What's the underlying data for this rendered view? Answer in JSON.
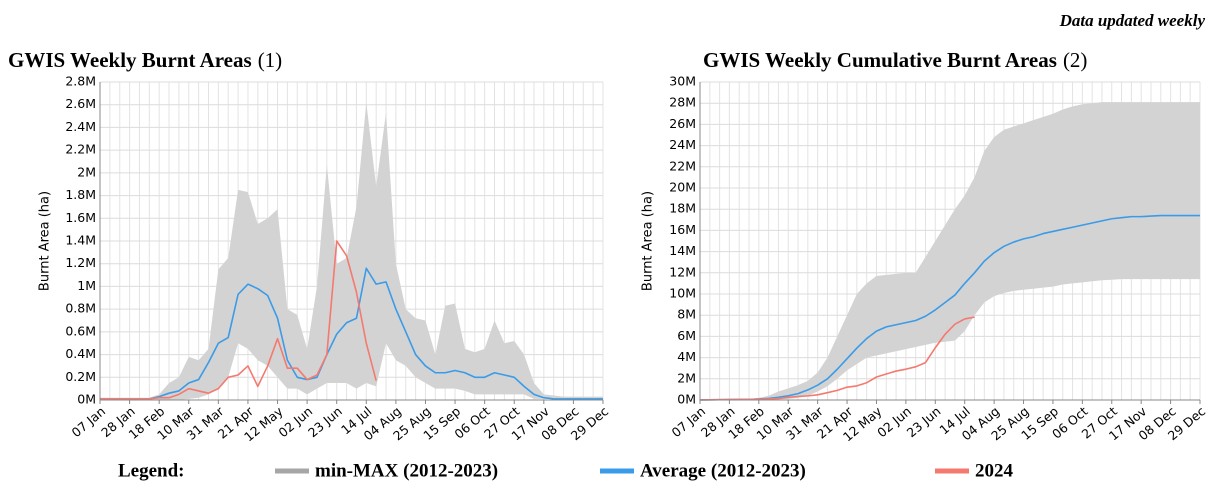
{
  "note": "Data updated weekly",
  "legend_title": "Legend:",
  "chart_data": [
    {
      "type": "line",
      "title": "GWIS Weekly Burnt Areas",
      "title_ref": "(1)",
      "y_label": "Burnt Area (ha)",
      "grid": true,
      "categories": [
        "07 Jan",
        null,
        null,
        "28 Jan",
        null,
        null,
        "18 Feb",
        null,
        null,
        "10 Mar",
        null,
        null,
        "31 Mar",
        null,
        null,
        "21 Apr",
        null,
        null,
        "12 May",
        null,
        null,
        "02 Jun",
        null,
        null,
        "23 Jun",
        null,
        null,
        "14 Jul",
        null,
        null,
        "04 Aug",
        null,
        null,
        "25 Aug",
        null,
        null,
        "15 Sep",
        null,
        null,
        "06 Oct",
        null,
        null,
        "27 Oct",
        null,
        null,
        "17 Nov",
        null,
        null,
        "08 Dec",
        null,
        null,
        "29 Dec"
      ],
      "ylim": [
        0,
        2800000
      ],
      "yticks": [
        {
          "value": 0,
          "label": "0M"
        },
        {
          "value": 200000,
          "label": "0.2M"
        },
        {
          "value": 400000,
          "label": "0.4M"
        },
        {
          "value": 600000,
          "label": "0.6M"
        },
        {
          "value": 800000,
          "label": "0.8M"
        },
        {
          "value": 1000000,
          "label": "1M"
        },
        {
          "value": 1200000,
          "label": "1.2M"
        },
        {
          "value": 1400000,
          "label": "1.4M"
        },
        {
          "value": 1600000,
          "label": "1.6M"
        },
        {
          "value": 1800000,
          "label": "1.8M"
        },
        {
          "value": 2000000,
          "label": "2M"
        },
        {
          "value": 2200000,
          "label": "2.2M"
        },
        {
          "value": 2400000,
          "label": "2.4M"
        },
        {
          "value": 2600000,
          "label": "2.6M"
        },
        {
          "value": 2800000,
          "label": "2.8M"
        }
      ],
      "series": [
        {
          "name": "min-MAX (2012-2023)",
          "color": "#a6a6a6",
          "fill": "#d3d3d3",
          "min": [
            0,
            0,
            0,
            0,
            0,
            0,
            0,
            0,
            0,
            10000,
            20000,
            50000,
            100000,
            200000,
            500000,
            450000,
            350000,
            300000,
            200000,
            100000,
            100000,
            50000,
            100000,
            150000,
            150000,
            150000,
            100000,
            150000,
            120000,
            500000,
            350000,
            300000,
            200000,
            150000,
            100000,
            100000,
            100000,
            80000,
            50000,
            50000,
            50000,
            50000,
            50000,
            50000,
            10000,
            10000,
            10000,
            10000,
            10000,
            10000,
            10000,
            10000
          ],
          "max": [
            20000,
            20000,
            20000,
            20000,
            20000,
            20000,
            50000,
            150000,
            200000,
            380000,
            350000,
            450000,
            1150000,
            1250000,
            1850000,
            1830000,
            1550000,
            1600000,
            1680000,
            800000,
            750000,
            450000,
            1000000,
            2070000,
            1200000,
            1250000,
            1700000,
            2620000,
            1880000,
            2530000,
            1200000,
            800000,
            720000,
            700000,
            400000,
            830000,
            850000,
            450000,
            420000,
            450000,
            700000,
            500000,
            520000,
            400000,
            150000,
            50000,
            40000,
            30000,
            30000,
            30000,
            30000,
            30000
          ]
        },
        {
          "name": "Average (2012-2023)",
          "color": "#3a9be8",
          "values": [
            10000,
            10000,
            10000,
            10000,
            10000,
            10000,
            30000,
            60000,
            80000,
            150000,
            180000,
            330000,
            500000,
            550000,
            930000,
            1020000,
            980000,
            920000,
            720000,
            350000,
            200000,
            180000,
            200000,
            400000,
            580000,
            680000,
            720000,
            1160000,
            1020000,
            1040000,
            800000,
            600000,
            400000,
            300000,
            240000,
            240000,
            260000,
            240000,
            200000,
            200000,
            240000,
            220000,
            200000,
            120000,
            50000,
            20000,
            10000,
            10000,
            10000,
            10000,
            10000,
            10000
          ]
        },
        {
          "name": "2024",
          "color": "#f47a6f",
          "values": [
            10000,
            10000,
            10000,
            10000,
            10000,
            10000,
            20000,
            20000,
            50000,
            100000,
            80000,
            60000,
            100000,
            200000,
            220000,
            300000,
            120000,
            300000,
            540000,
            280000,
            280000,
            180000,
            220000,
            400000,
            1400000,
            1270000,
            950000,
            500000,
            170000,
            null,
            null,
            null,
            null,
            null,
            null,
            null,
            null,
            null,
            null,
            null,
            null,
            null,
            null,
            null,
            null,
            null,
            null,
            null,
            null,
            null,
            null,
            null
          ]
        }
      ]
    },
    {
      "type": "line",
      "title": "GWIS Weekly Cumulative Burnt Areas",
      "title_ref": "(2)",
      "y_label": "Burnt Area (ha)",
      "grid": true,
      "categories": [
        "07 Jan",
        null,
        null,
        "28 Jan",
        null,
        null,
        "18 Feb",
        null,
        null,
        "10 Mar",
        null,
        null,
        "31 Mar",
        null,
        null,
        "21 Apr",
        null,
        null,
        "12 May",
        null,
        null,
        "02 Jun",
        null,
        null,
        "23 Jun",
        null,
        null,
        "14 Jul",
        null,
        null,
        "04 Aug",
        null,
        null,
        "25 Aug",
        null,
        null,
        "15 Sep",
        null,
        null,
        "06 Oct",
        null,
        null,
        "27 Oct",
        null,
        null,
        "17 Nov",
        null,
        null,
        "08 Dec",
        null,
        null,
        "29 Dec"
      ],
      "ylim": [
        0,
        30000000
      ],
      "yticks": [
        {
          "value": 0,
          "label": "0M"
        },
        {
          "value": 2000000,
          "label": "2M"
        },
        {
          "value": 4000000,
          "label": "4M"
        },
        {
          "value": 6000000,
          "label": "6M"
        },
        {
          "value": 8000000,
          "label": "8M"
        },
        {
          "value": 10000000,
          "label": "10M"
        },
        {
          "value": 12000000,
          "label": "12M"
        },
        {
          "value": 14000000,
          "label": "14M"
        },
        {
          "value": 16000000,
          "label": "16M"
        },
        {
          "value": 18000000,
          "label": "18M"
        },
        {
          "value": 20000000,
          "label": "20M"
        },
        {
          "value": 22000000,
          "label": "22M"
        },
        {
          "value": 24000000,
          "label": "24M"
        },
        {
          "value": 26000000,
          "label": "26M"
        },
        {
          "value": 28000000,
          "label": "28M"
        },
        {
          "value": 30000000,
          "label": "30M"
        }
      ],
      "series": [
        {
          "name": "min-MAX (2012-2023)",
          "color": "#a6a6a6",
          "fill": "#d3d3d3",
          "min": [
            0,
            0,
            0,
            0,
            0,
            0,
            10000,
            20000,
            50000,
            100000,
            200000,
            400000,
            800000,
            1300000,
            2000000,
            2800000,
            3400000,
            4000000,
            4200000,
            4400000,
            4600000,
            4800000,
            5000000,
            5200000,
            5400000,
            5500000,
            5600000,
            6500000,
            8000000,
            9200000,
            9800000,
            10100000,
            10300000,
            10400000,
            10500000,
            10600000,
            10700000,
            10900000,
            11000000,
            11100000,
            11200000,
            11300000,
            11350000,
            11400000,
            11400000,
            11400000,
            11400000,
            11400000,
            11400000,
            11400000,
            11400000,
            11400000
          ],
          "max": [
            20000,
            30000,
            40000,
            60000,
            80000,
            100000,
            200000,
            400000,
            800000,
            1100000,
            1400000,
            1800000,
            2600000,
            4000000,
            6000000,
            8000000,
            10000000,
            11000000,
            11700000,
            11800000,
            11900000,
            12000000,
            12000000,
            13500000,
            15000000,
            16500000,
            18000000,
            19300000,
            21000000,
            23500000,
            24800000,
            25500000,
            25800000,
            26100000,
            26400000,
            26700000,
            27000000,
            27400000,
            27700000,
            27900000,
            28000000,
            28100000,
            28100000,
            28100000,
            28100000,
            28100000,
            28100000,
            28100000,
            28100000,
            28100000,
            28100000,
            28100000
          ]
        },
        {
          "name": "Average (2012-2023)",
          "color": "#3a9be8",
          "values": [
            10000,
            20000,
            30000,
            40000,
            50000,
            60000,
            100000,
            150000,
            250000,
            400000,
            600000,
            950000,
            1400000,
            2000000,
            2900000,
            3900000,
            4900000,
            5800000,
            6500000,
            6900000,
            7100000,
            7300000,
            7500000,
            7900000,
            8500000,
            9200000,
            9900000,
            11000000,
            12000000,
            13100000,
            13900000,
            14500000,
            14900000,
            15200000,
            15400000,
            15700000,
            15900000,
            16100000,
            16300000,
            16500000,
            16700000,
            16900000,
            17100000,
            17200000,
            17300000,
            17300000,
            17350000,
            17400000,
            17400000,
            17400000,
            17400000,
            17400000
          ]
        },
        {
          "name": "2024",
          "color": "#f47a6f",
          "values": [
            10000,
            20000,
            30000,
            40000,
            50000,
            60000,
            80000,
            100000,
            150000,
            250000,
            330000,
            390000,
            490000,
            690000,
            910000,
            1210000,
            1330000,
            1630000,
            2170000,
            2450000,
            2730000,
            2910000,
            3130000,
            3530000,
            4930000,
            6200000,
            7150000,
            7650000,
            7820000,
            null,
            null,
            null,
            null,
            null,
            null,
            null,
            null,
            null,
            null,
            null,
            null,
            null,
            null,
            null,
            null,
            null,
            null,
            null,
            null,
            null,
            null,
            null
          ]
        }
      ]
    }
  ]
}
